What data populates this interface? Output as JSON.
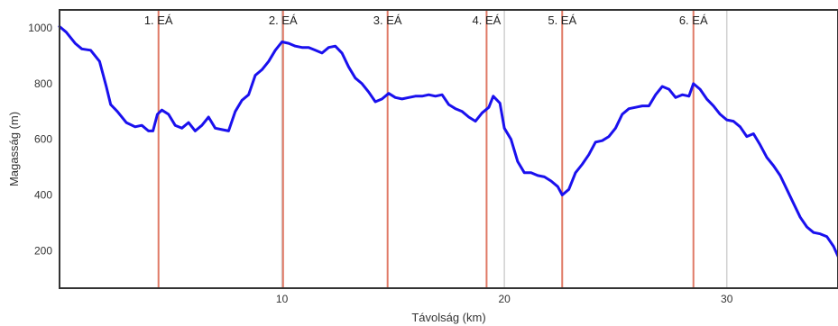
{
  "chart_data": {
    "type": "line",
    "xlabel": "Távolság (km)",
    "ylabel": "Magasság (m)",
    "xlim": [
      0,
      35
    ],
    "ylim": [
      65,
      1065
    ],
    "x_ticks": [
      10,
      20,
      30
    ],
    "y_ticks": [
      200,
      400,
      600,
      800,
      1000
    ],
    "grid": "vertical lines at x ticks",
    "colors": {
      "line": "#1a10ee",
      "marker": "#e07a66",
      "grid": "#d0d0d0",
      "frame": "#333333"
    },
    "markers": [
      {
        "label": "1. EÁ",
        "x": 4.45
      },
      {
        "label": "2. EÁ",
        "x": 10.05
      },
      {
        "label": "3. EÁ",
        "x": 14.75
      },
      {
        "label": "4. EÁ",
        "x": 19.2
      },
      {
        "label": "5. EÁ",
        "x": 22.6
      },
      {
        "label": "6. EÁ",
        "x": 28.5
      }
    ],
    "series": [
      {
        "x": [
          0,
          0.3,
          0.7,
          1.0,
          1.4,
          1.8,
          2.1,
          2.3,
          2.6,
          3.0,
          3.4,
          3.7,
          4.0,
          4.2,
          4.4,
          4.6,
          4.9,
          5.2,
          5.5,
          5.8,
          6.1,
          6.4,
          6.7,
          7.0,
          7.3,
          7.6,
          7.9,
          8.2,
          8.5,
          8.8,
          9.1,
          9.4,
          9.7,
          10.0,
          10.3,
          10.6,
          10.9,
          11.2,
          11.5,
          11.8,
          12.1,
          12.4,
          12.7,
          13.0,
          13.3,
          13.6,
          13.9,
          14.2,
          14.5,
          14.8,
          15.1,
          15.4,
          15.7,
          16.0,
          16.3,
          16.6,
          16.9,
          17.2,
          17.5,
          17.8,
          18.1,
          18.4,
          18.7,
          19.0,
          19.3,
          19.5,
          19.8,
          20.0,
          20.3,
          20.6,
          20.9,
          21.2,
          21.5,
          21.8,
          22.1,
          22.4,
          22.6,
          22.9,
          23.2,
          23.5,
          23.8,
          24.1,
          24.4,
          24.7,
          25.0,
          25.3,
          25.6,
          25.9,
          26.2,
          26.5,
          26.8,
          27.1,
          27.4,
          27.7,
          28.0,
          28.3,
          28.5,
          28.8,
          29.1,
          29.4,
          29.7,
          30.0,
          30.3,
          30.6,
          30.9,
          31.2,
          31.5,
          31.8,
          32.1,
          32.4,
          32.7,
          33.0,
          33.3,
          33.6,
          33.9,
          34.2,
          34.5,
          34.8,
          35.0
        ],
        "values": [
          1005,
          985,
          945,
          925,
          920,
          880,
          790,
          725,
          700,
          660,
          645,
          650,
          630,
          630,
          690,
          705,
          690,
          650,
          640,
          660,
          630,
          650,
          680,
          640,
          635,
          630,
          700,
          740,
          760,
          830,
          850,
          880,
          920,
          950,
          945,
          935,
          930,
          930,
          920,
          910,
          930,
          935,
          910,
          860,
          820,
          800,
          770,
          735,
          745,
          765,
          750,
          745,
          750,
          755,
          755,
          760,
          755,
          760,
          725,
          710,
          700,
          680,
          665,
          695,
          715,
          755,
          730,
          640,
          600,
          520,
          480,
          480,
          470,
          465,
          450,
          430,
          400,
          420,
          480,
          510,
          545,
          590,
          595,
          610,
          640,
          690,
          710,
          715,
          720,
          720,
          760,
          790,
          780,
          750,
          760,
          755,
          800,
          780,
          745,
          720,
          690,
          670,
          665,
          645,
          610,
          620,
          580,
          535,
          505,
          470,
          420,
          370,
          320,
          285,
          265,
          260,
          250,
          215,
          180
        ]
      }
    ]
  }
}
